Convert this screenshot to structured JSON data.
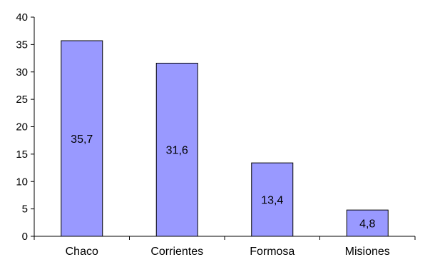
{
  "chart_data": {
    "type": "bar",
    "categories": [
      "Chaco",
      "Corrientes",
      "Formosa",
      "Misiones"
    ],
    "values": [
      35.7,
      31.6,
      13.4,
      4.8
    ],
    "data_labels": [
      "35,7",
      "31,6",
      "13,4",
      "4,8"
    ],
    "title": "",
    "xlabel": "",
    "ylabel": "",
    "ylim": [
      0,
      40
    ],
    "yticks": [
      0,
      5,
      10,
      15,
      20,
      25,
      30,
      35,
      40
    ],
    "grid": false,
    "legend": "none",
    "bar_color": "#9999FF"
  }
}
